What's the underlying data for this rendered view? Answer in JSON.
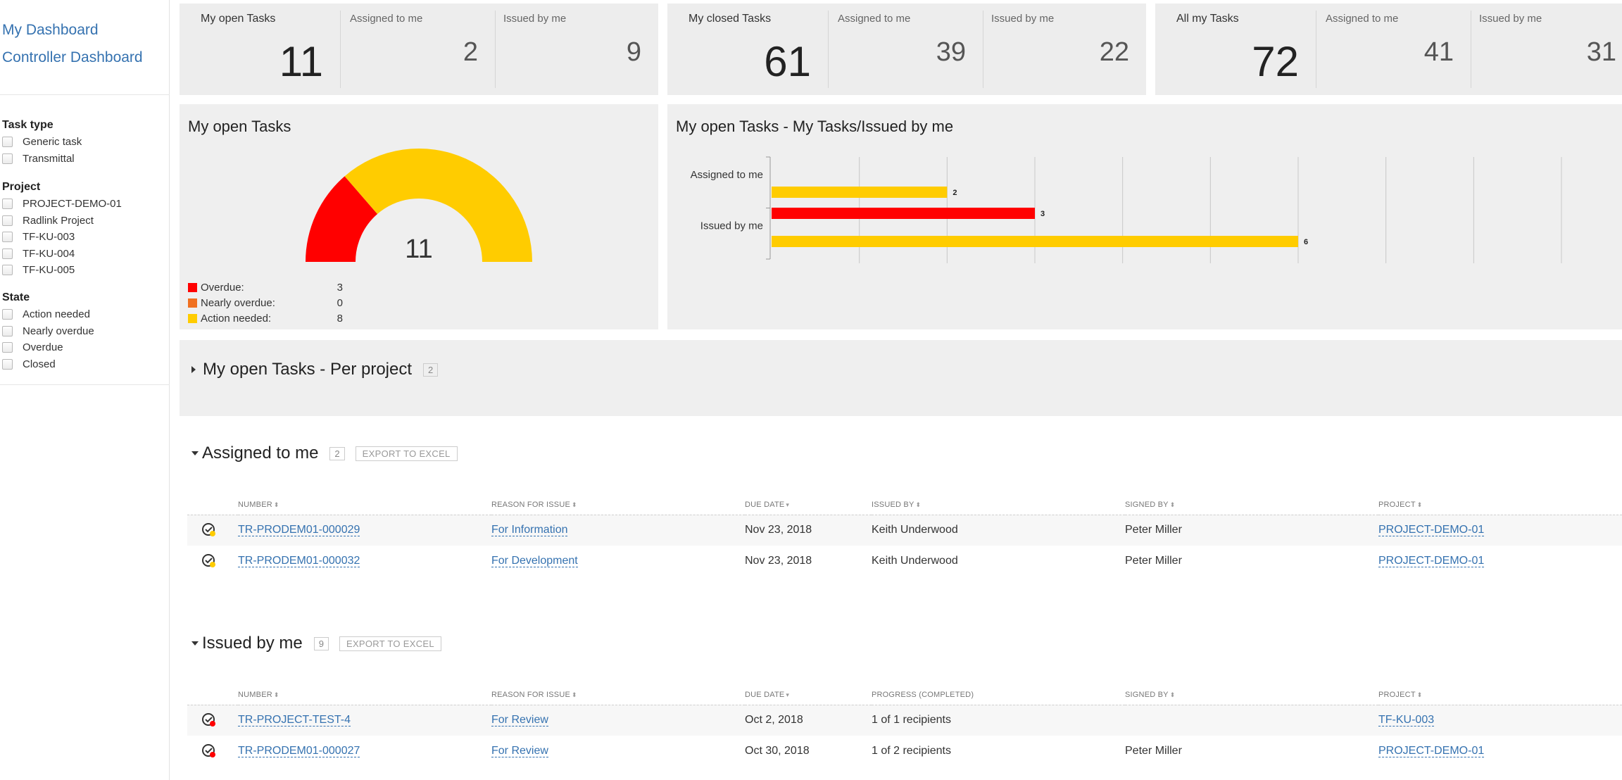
{
  "sidebar": {
    "links": [
      "My Dashboard",
      "Controller Dashboard"
    ],
    "filters": [
      {
        "title": "Task type",
        "items": [
          "Generic task",
          "Transmittal"
        ]
      },
      {
        "title": "Project",
        "items": [
          "PROJECT-DEMO-01",
          "Radlink Project",
          "TF-KU-003",
          "TF-KU-004",
          "TF-KU-005"
        ]
      },
      {
        "title": "State",
        "items": [
          "Action needed",
          "Nearly overdue",
          "Overdue",
          "Closed"
        ]
      }
    ]
  },
  "stats": [
    {
      "main_label": "My open Tasks",
      "main_value": "11",
      "assigned_label": "Assigned to me",
      "assigned_value": "2",
      "issued_label": "Issued by me",
      "issued_value": "9"
    },
    {
      "main_label": "My closed Tasks",
      "main_value": "61",
      "assigned_label": "Assigned to me",
      "assigned_value": "39",
      "issued_label": "Issued by me",
      "issued_value": "22"
    },
    {
      "main_label": "All my Tasks",
      "main_value": "72",
      "assigned_label": "Assigned to me",
      "assigned_value": "41",
      "issued_label": "Issued by me",
      "issued_value": "31"
    }
  ],
  "colors": {
    "overdue": "#ff0000",
    "nearly_overdue": "#f07020",
    "action_needed": "#ffcc00",
    "link": "#3572b0"
  },
  "gauge": {
    "title": "My open Tasks",
    "total": "11",
    "legend": [
      {
        "label": "Overdue:",
        "value": "3",
        "color": "#ff0000"
      },
      {
        "label": "Nearly overdue:",
        "value": "0",
        "color": "#f07020"
      },
      {
        "label": "Action needed:",
        "value": "8",
        "color": "#ffcc00"
      }
    ]
  },
  "chart_data": {
    "type": "bar",
    "title": "My open Tasks - My Tasks/Issued by me",
    "orientation": "horizontal",
    "categories": [
      "Assigned to me",
      "Issued by me"
    ],
    "series": [
      {
        "color": "#ff0000",
        "values": [
          0,
          3
        ]
      },
      {
        "color": "#ffcc00",
        "values": [
          2,
          6
        ]
      }
    ],
    "xlim": [
      0,
      9
    ],
    "grid": true,
    "data_labels": true
  },
  "per_project": {
    "title": "My open Tasks - Per project",
    "count": "2"
  },
  "assigned": {
    "title": "Assigned to me",
    "count": "2",
    "export": "EXPORT TO EXCEL",
    "headers": [
      "NUMBER",
      "REASON FOR ISSUE",
      "DUE DATE",
      "ISSUED BY",
      "SIGNED BY",
      "PROJECT"
    ],
    "rows": [
      {
        "number": "TR-PRODEM01-000029",
        "reason": "For Information",
        "due": "Nov 23, 2018",
        "issued_by": "Keith Underwood",
        "signed_by": "Peter Miller",
        "project": "PROJECT-DEMO-01",
        "status": "action-needed"
      },
      {
        "number": "TR-PRODEM01-000032",
        "reason": "For Development",
        "due": "Nov 23, 2018",
        "issued_by": "Keith Underwood",
        "signed_by": "Peter Miller",
        "project": "PROJECT-DEMO-01",
        "status": "action-needed"
      }
    ]
  },
  "issued": {
    "title": "Issued by me",
    "count": "9",
    "export": "EXPORT TO EXCEL",
    "headers": [
      "NUMBER",
      "REASON FOR ISSUE",
      "DUE DATE",
      "PROGRESS (COMPLETED)",
      "SIGNED BY",
      "PROJECT"
    ],
    "rows": [
      {
        "number": "TR-PROJECT-TEST-4",
        "reason": "For Review",
        "due": "Oct 2, 2018",
        "progress": "1 of 1 recipients",
        "signed_by": "",
        "project": "TF-KU-003",
        "status": "overdue"
      },
      {
        "number": "TR-PRODEM01-000027",
        "reason": "For Review",
        "due": "Oct 30, 2018",
        "progress": "1 of 2 recipients",
        "signed_by": "Peter Miller",
        "project": "PROJECT-DEMO-01",
        "status": "overdue"
      }
    ]
  }
}
